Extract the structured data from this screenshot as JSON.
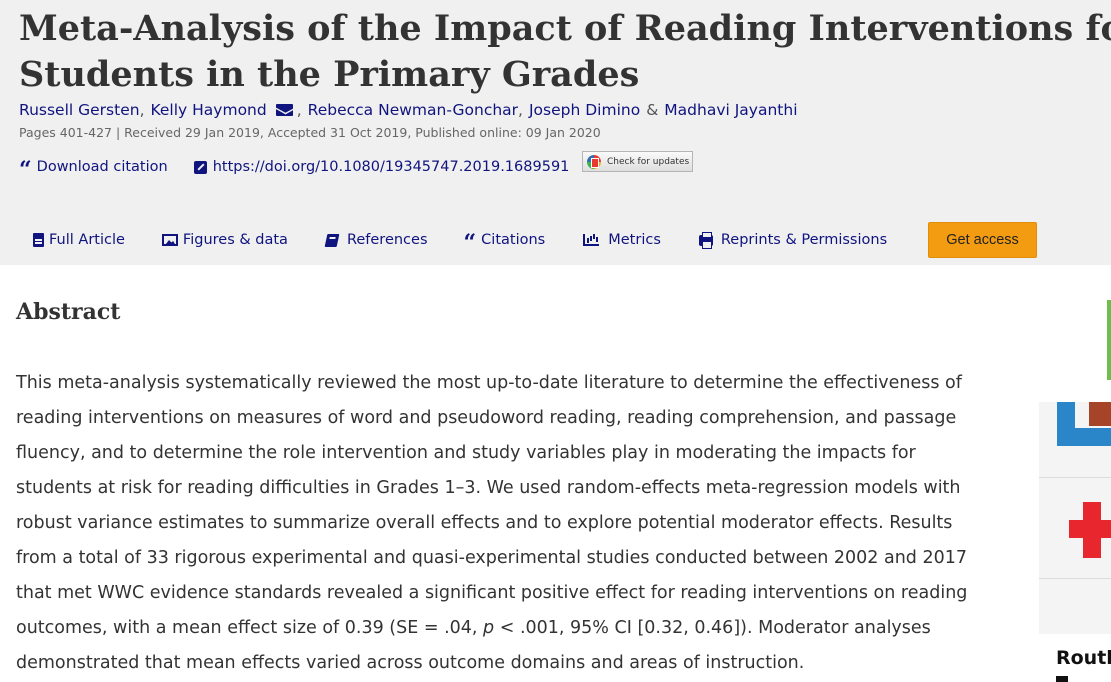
{
  "article": {
    "title_line1": "Meta-Analysis of the Impact of Reading Interventions for",
    "title_line2": "Students in the Primary Grades",
    "authors": [
      {
        "name": "Russell Gersten"
      },
      {
        "name": "Kelly Haymond"
      },
      {
        "name": "Rebecca Newman-Gonchar"
      },
      {
        "name": "Joseph Dimino"
      },
      {
        "name": "Madhavi Jayanthi"
      }
    ],
    "author_separator": ",",
    "author_ampersand": "&",
    "meta_line": "Pages 401-427 | Received 29 Jan 2019, Accepted 31 Oct 2019, Published online: 09 Jan 2020"
  },
  "tools": {
    "download_citation": "Download citation",
    "doi_link": "https://doi.org/10.1080/19345747.2019.1689591",
    "check_updates": "Check for updates"
  },
  "tabs": [
    {
      "label": "Full Article",
      "icon": "document-icon"
    },
    {
      "label": "Figures & data",
      "icon": "image-icon"
    },
    {
      "label": "References",
      "icon": "book-icon"
    },
    {
      "label": "Citations",
      "icon": "quote-icon"
    },
    {
      "label": "Metrics",
      "icon": "bar-chart-icon"
    },
    {
      "label": "Reprints & Permissions",
      "icon": "print-icon"
    }
  ],
  "get_access": "Get access",
  "abstract": {
    "heading": "Abstract",
    "lines": [
      "This meta-analysis systematically reviewed the most up-to-date literature to determine the effectiveness of",
      "reading interventions on measures of word and pseudoword reading, reading comprehension, and passage",
      "fluency, and to determine the role intervention and study variables play in moderating the impacts for",
      "students at risk for reading difficulties in Grades 1–3. We used random-effects meta-regression models with",
      "robust variance estimates to summarize overall effects and to explore potential moderator effects. Results",
      "from a total of 33 rigorous experimental and quasi-experimental studies conducted between 2002 and 2017",
      "that met WWC evidence standards revealed a significant positive effect for reading interventions on reading"
    ],
    "line8_before_p": "outcomes, with a mean effect size of 0.39 (SE = .04, ",
    "line8_p": "p",
    "line8_after_p": " < .001, 95% CI [0.32, 0.46]). Moderator analyses",
    "line9": "demonstrated that mean effects varied across outcome domains and areas of instruction."
  },
  "ad": {
    "caption": "Routl"
  },
  "colors": {
    "link": "#10147e",
    "header_bg": "#f0f0f0",
    "accent_button": "#f39c12"
  }
}
